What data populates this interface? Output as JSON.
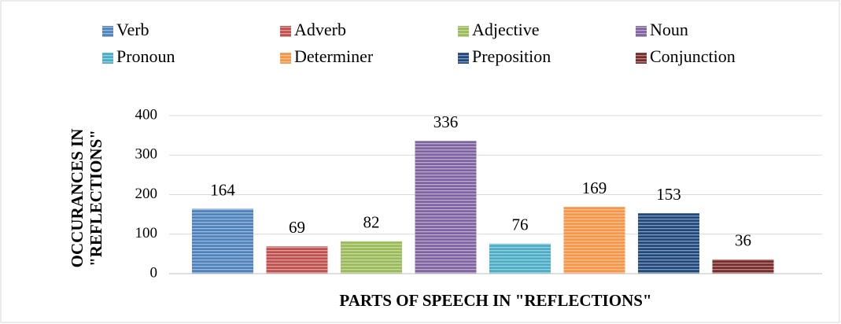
{
  "chart_data": {
    "type": "bar",
    "xlabel": "PARTS OF SPEECH IN \"REFLECTIONS\"",
    "ylabel": [
      "OCCURANCES IN",
      "\"REFLECTIONS\""
    ],
    "ylim": [
      0,
      400
    ],
    "yticks": [
      0,
      100,
      200,
      300,
      400
    ],
    "grid": true,
    "legend": "top",
    "series": [
      {
        "name": "Verb",
        "color": "#4f81bd",
        "values": [
          164
        ]
      },
      {
        "name": "Adverb",
        "color": "#c0504d",
        "values": [
          69
        ]
      },
      {
        "name": "Adjective",
        "color": "#9bbb59",
        "values": [
          82
        ]
      },
      {
        "name": "Noun",
        "color": "#8064a2",
        "values": [
          336
        ]
      },
      {
        "name": "Pronoun",
        "color": "#4bacc6",
        "values": [
          76
        ]
      },
      {
        "name": "Determiner",
        "color": "#f79646",
        "values": [
          169
        ]
      },
      {
        "name": "Preposition",
        "color": "#1f497d",
        "values": [
          153
        ]
      },
      {
        "name": "Conjunction",
        "color": "#772c2a",
        "values": [
          36
        ]
      }
    ]
  }
}
